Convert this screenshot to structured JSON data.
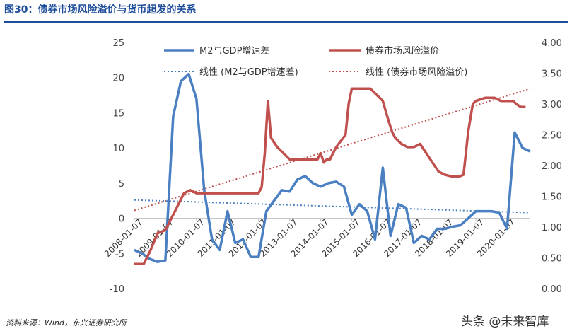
{
  "header": {
    "title": "图30：债券市场风险溢价与货币超发的关系",
    "source": "资料来源：Wind，东兴证券研究所",
    "watermark": "头条 @未来智库"
  },
  "chart_data": {
    "type": "line",
    "title": "图30：债券市场风险溢价与货币超发的关系",
    "x_tick_labels": [
      "2008-01-07",
      "2009-01-07",
      "2010-01-07",
      "2011-01-07",
      "2012-01-07",
      "2013-01-07",
      "2014-01-07",
      "2015-01-07",
      "2016-01-07",
      "2017-01-07",
      "2018-01-07",
      "2019-01-07",
      "2020-01-07"
    ],
    "y_left": {
      "min": -10,
      "max": 25,
      "ticks": [
        25,
        20,
        15,
        10,
        5,
        0,
        -5,
        -10
      ]
    },
    "y_right": {
      "min": 0,
      "max": 4,
      "ticks": [
        "4.00",
        "3.50",
        "3.00",
        "2.50",
        "2.00",
        "1.50",
        "1.00",
        "0.50",
        "0.00"
      ]
    },
    "legend": {
      "s1": "M2与GDP增速差",
      "s2": "债券市场风险溢价",
      "t1": "线性 (M2与GDP增速差)",
      "t2": "线性 (债券市场风险溢价)"
    },
    "colors": {
      "blue": "#4a7fc1",
      "red": "#c0504d"
    },
    "series": [
      {
        "name": "M2与GDP增速差",
        "axis": "left",
        "x": [
          2008.0,
          2008.25,
          2008.5,
          2008.75,
          2009.0,
          2009.25,
          2009.5,
          2009.75,
          2010.0,
          2010.25,
          2010.5,
          2010.75,
          2011.0,
          2011.25,
          2011.5,
          2011.75,
          2012.0,
          2012.25,
          2012.5,
          2012.75,
          2013.0,
          2013.25,
          2013.5,
          2013.75,
          2014.0,
          2014.25,
          2014.5,
          2014.75,
          2015.0,
          2015.25,
          2015.5,
          2015.75,
          2016.0,
          2016.25,
          2016.5,
          2016.75,
          2017.0,
          2017.25,
          2017.5,
          2017.75,
          2018.0,
          2018.25,
          2018.5,
          2018.75,
          2019.0,
          2019.25,
          2019.5,
          2019.75,
          2020.0,
          2020.25,
          2020.5,
          2020.75
        ],
        "y": [
          -4.5,
          -5.0,
          -5.8,
          -6.2,
          -6.0,
          14.5,
          19.5,
          20.5,
          17.0,
          4.0,
          -3.0,
          -4.5,
          1.0,
          -3.5,
          -3.0,
          -5.5,
          -5.5,
          1.0,
          2.5,
          4.0,
          3.8,
          5.5,
          6.0,
          5.0,
          4.5,
          5.0,
          5.2,
          4.5,
          0.5,
          2.0,
          1.0,
          -3.0,
          7.2,
          -2.5,
          2.0,
          1.5,
          -3.5,
          -2.5,
          -3.0,
          -1.5,
          -1.5,
          -1.2,
          -1.0,
          0.0,
          1.0,
          1.0,
          1.0,
          0.8,
          -1.5,
          12.2,
          10.0,
          9.5
        ]
      },
      {
        "name": "债券市场风险溢价",
        "axis": "right",
        "x": [
          2008.0,
          2008.3,
          2008.5,
          2008.75,
          2009.0,
          2009.2,
          2009.4,
          2009.6,
          2009.8,
          2010.0,
          2010.4,
          2010.8,
          2011.2,
          2011.5,
          2011.7,
          2011.9,
          2012.0,
          2012.1,
          2012.2,
          2012.3,
          2012.4,
          2012.6,
          2012.8,
          2013.0,
          2013.2,
          2013.5,
          2013.75,
          2013.9,
          2014.0,
          2014.1,
          2014.2,
          2014.3,
          2014.4,
          2014.5,
          2014.8,
          2014.9,
          2015.0,
          2015.3,
          2015.6,
          2015.9,
          2016.0,
          2016.2,
          2016.3,
          2016.4,
          2016.6,
          2016.8,
          2017.0,
          2017.2,
          2017.4,
          2017.6,
          2017.8,
          2018.0,
          2018.25,
          2018.45,
          2018.6,
          2018.75,
          2018.9,
          2019.0,
          2019.3,
          2019.6,
          2019.8,
          2020.0,
          2020.2,
          2020.3,
          2020.45,
          2020.6
        ],
        "y": [
          0.4,
          0.4,
          0.6,
          0.9,
          0.95,
          1.15,
          1.35,
          1.55,
          1.6,
          1.55,
          1.55,
          1.55,
          1.55,
          1.55,
          1.55,
          1.55,
          1.55,
          1.65,
          2.2,
          3.05,
          2.45,
          2.3,
          2.2,
          2.1,
          2.1,
          2.1,
          2.1,
          2.1,
          2.2,
          2.05,
          2.1,
          2.1,
          2.2,
          2.3,
          2.5,
          3.0,
          3.25,
          3.25,
          3.25,
          3.1,
          3.05,
          2.7,
          2.55,
          2.45,
          2.35,
          2.3,
          2.3,
          2.35,
          2.2,
          2.05,
          1.9,
          1.85,
          1.82,
          1.82,
          1.85,
          2.55,
          3.0,
          3.05,
          3.1,
          3.1,
          3.05,
          3.05,
          3.05,
          3.0,
          2.95,
          2.95
        ]
      }
    ],
    "trendlines": [
      {
        "name": "线性 (M2与GDP增速差)",
        "axis": "left",
        "x": [
          2008.0,
          2020.75
        ],
        "y": [
          2.6,
          0.8
        ]
      },
      {
        "name": "线性 (债券市场风险溢价)",
        "axis": "right",
        "x": [
          2008.0,
          2020.75
        ],
        "y": [
          1.27,
          3.25
        ]
      }
    ]
  }
}
